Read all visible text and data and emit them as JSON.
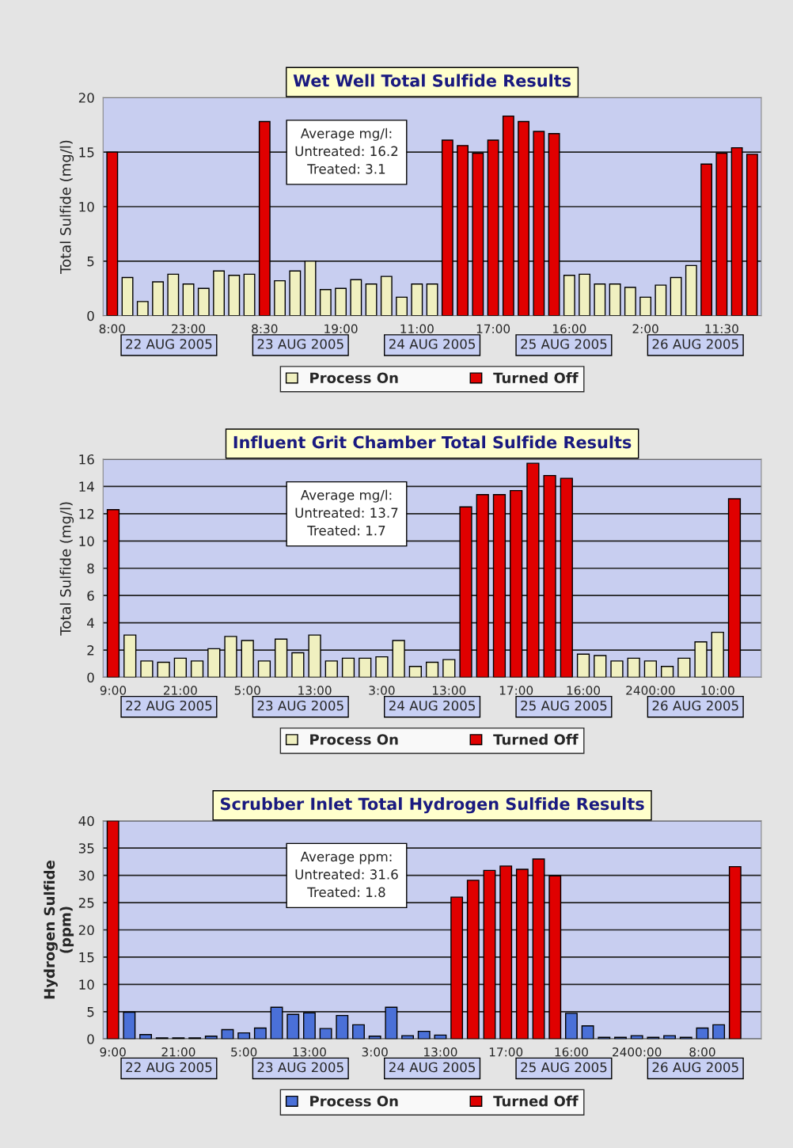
{
  "chart_data": [
    {
      "type": "bar",
      "title": "Wet Well Total Sulfide Results",
      "ylabel": "Total Sulfide (mg/l)",
      "categories": [
        "8:00",
        null,
        null,
        null,
        null,
        "23:00",
        null,
        null,
        null,
        null,
        "8:30",
        null,
        null,
        null,
        null,
        "19:00",
        null,
        null,
        null,
        null,
        "11:00",
        null,
        null,
        null,
        null,
        "17:00",
        null,
        null,
        null,
        null,
        "16:00",
        null,
        null,
        null,
        null,
        "2:00",
        null,
        null,
        null,
        null,
        "11:30",
        null,
        null
      ],
      "series": [
        {
          "name": "Process On",
          "color": "#f0f0c0",
          "values": [
            null,
            3.5,
            1.3,
            3.1,
            3.8,
            2.9,
            2.5,
            4.1,
            3.7,
            3.8,
            null,
            3.2,
            4.1,
            5.0,
            2.4,
            2.5,
            3.3,
            2.9,
            3.6,
            1.7,
            2.9,
            2.9,
            null,
            null,
            null,
            null,
            null,
            null,
            null,
            null,
            3.7,
            3.8,
            2.9,
            2.9,
            2.6,
            1.7,
            2.8,
            3.5,
            4.6,
            null,
            null,
            null,
            null
          ]
        },
        {
          "name": "Turned Off",
          "color": "#e00000",
          "values": [
            15.0,
            null,
            null,
            null,
            null,
            null,
            null,
            null,
            null,
            null,
            17.8,
            null,
            null,
            null,
            null,
            null,
            null,
            null,
            null,
            null,
            null,
            null,
            16.1,
            15.6,
            14.9,
            16.1,
            18.3,
            17.8,
            16.9,
            16.7,
            null,
            null,
            null,
            null,
            null,
            null,
            null,
            null,
            null,
            13.9,
            14.9,
            15.4,
            14.8
          ]
        }
      ],
      "ylim": [
        0,
        20
      ],
      "yticks": [
        0,
        5,
        10,
        15,
        20
      ],
      "grid": "y",
      "legend": "bottom",
      "annotations": [
        "Average mg/l:",
        "Untreated: 16.2",
        "Treated: 3.1",
        "22 AUG 2005",
        "23 AUG 2005",
        "24 AUG 2005",
        "25 AUG 2005",
        "26 AUG 2005"
      ]
    },
    {
      "type": "bar",
      "title": "Influent Grit Chamber Total Sulfide Results",
      "ylabel": "Total Sulfide (mg/l)",
      "categories": [
        "9:00",
        null,
        null,
        null,
        "21:00",
        null,
        null,
        null,
        "5:00",
        null,
        null,
        null,
        "13:00",
        null,
        null,
        null,
        "3:00",
        null,
        null,
        null,
        "13:00",
        null,
        null,
        null,
        "17:00",
        null,
        null,
        null,
        "16:00",
        null,
        null,
        null,
        "2400:00",
        null,
        null,
        null,
        "10:00",
        null,
        null
      ],
      "series": [
        {
          "name": "Process On",
          "color": "#f0f0c0",
          "values": [
            null,
            3.1,
            1.2,
            1.1,
            1.4,
            1.2,
            2.1,
            3.0,
            2.7,
            1.2,
            2.8,
            1.8,
            3.1,
            1.2,
            1.4,
            1.4,
            1.5,
            2.7,
            0.8,
            1.1,
            1.3,
            null,
            null,
            null,
            null,
            null,
            null,
            null,
            1.7,
            1.6,
            1.2,
            1.4,
            1.2,
            0.8,
            1.4,
            2.6,
            3.3,
            null,
            null
          ]
        },
        {
          "name": "Turned Off",
          "color": "#e00000",
          "values": [
            12.3,
            null,
            null,
            null,
            null,
            null,
            null,
            null,
            null,
            null,
            null,
            null,
            null,
            null,
            null,
            null,
            null,
            null,
            null,
            null,
            null,
            12.5,
            13.4,
            13.4,
            13.7,
            15.7,
            14.8,
            14.6,
            null,
            null,
            null,
            null,
            null,
            null,
            null,
            null,
            null,
            13.1,
            null
          ]
        }
      ],
      "ylim": [
        0,
        16
      ],
      "yticks": [
        0,
        2,
        4,
        6,
        8,
        10,
        12,
        14,
        16
      ],
      "grid": "y",
      "legend": "bottom",
      "annotations": [
        "Average mg/l:",
        "Untreated: 13.7",
        "Treated: 1.7",
        "22 AUG 2005",
        "23 AUG 2005",
        "24 AUG 2005",
        "25 AUG 2005",
        "26 AUG 2005"
      ]
    },
    {
      "type": "bar",
      "title": "Scrubber Inlet Total Hydrogen Sulfide Results",
      "ylabel": "Hydrogen Sulfide\n(ppm)",
      "categories": [
        "9:00",
        null,
        null,
        null,
        "21:00",
        null,
        null,
        null,
        "5:00",
        null,
        null,
        null,
        "13:00",
        null,
        null,
        null,
        "3:00",
        null,
        null,
        null,
        "13:00",
        null,
        null,
        null,
        "17:00",
        null,
        null,
        null,
        "16:00",
        null,
        null,
        null,
        "2400:00",
        null,
        null,
        null,
        "8:00",
        null,
        null,
        null
      ],
      "series": [
        {
          "name": "Process On",
          "color": "#4a70d8",
          "values": [
            null,
            4.9,
            0.8,
            0.2,
            0.2,
            0.2,
            0.5,
            1.7,
            1.1,
            2.0,
            5.8,
            4.5,
            4.8,
            1.9,
            4.3,
            2.6,
            0.5,
            5.8,
            0.6,
            1.4,
            0.7,
            null,
            null,
            null,
            null,
            null,
            null,
            null,
            4.7,
            2.4,
            0.3,
            0.3,
            0.6,
            0.3,
            0.6,
            0.3,
            2.0,
            2.6,
            null,
            null
          ]
        },
        {
          "name": "Turned Off",
          "color": "#e00000",
          "values": [
            40.0,
            null,
            null,
            null,
            null,
            null,
            null,
            null,
            null,
            null,
            null,
            null,
            null,
            null,
            null,
            null,
            null,
            null,
            null,
            null,
            null,
            26.0,
            29.1,
            30.9,
            31.7,
            31.1,
            33.0,
            29.9,
            null,
            null,
            null,
            null,
            null,
            null,
            null,
            null,
            null,
            null,
            31.6,
            null
          ]
        }
      ],
      "ylim": [
        0,
        40
      ],
      "yticks": [
        0,
        5,
        10,
        15,
        20,
        25,
        30,
        35,
        40
      ],
      "grid": "y",
      "legend": "bottom",
      "annotations": [
        "Average ppm:",
        "Untreated: 31.6",
        "Treated: 1.8",
        "22 AUG 2005",
        "23 AUG 2005",
        "24 AUG 2005",
        "25 AUG 2005",
        "26 AUG 2005"
      ]
    }
  ]
}
